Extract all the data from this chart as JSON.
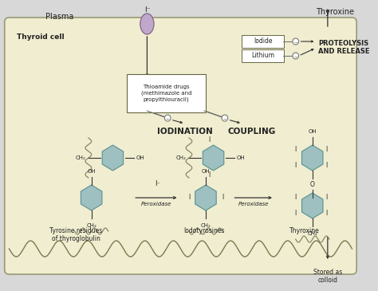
{
  "bg_color": "#f0edd0",
  "outer_bg": "#d8d8d8",
  "cell_fill": "#f0edd0",
  "cell_border": "#999977",
  "benzene_fill": "#9ec0c0",
  "benzene_border": "#5a9090",
  "title_plasma": "Plasma",
  "title_thyroid": "Thyroid cell",
  "title_thyroxine_top": "Thyroxine",
  "label_iodination": "IODINATION",
  "label_coupling": "COUPLING",
  "label_peroxidase1": "Peroxidase",
  "label_peroxidase2": "Peroxidase",
  "label_iodide": "Iodide",
  "label_lithium": "Lithium",
  "label_proteolysis": "PROTEOLYSIS\nAND RELEASE",
  "label_thioamide": "Thioamide drugs\n(methimazole and\npropylthiouracil)",
  "label_tyrosine": "Tyrosine residues\nof thyroglobulin",
  "label_iodotyrosines": "Iodotyrosines",
  "label_thyroxine_bot": "Thyroxine",
  "label_stored": "Stored as\ncolloid",
  "label_iodide_ion_top": "I⁻",
  "line_color": "#333333",
  "arrow_color": "#333333",
  "inhibit_circle_color": "#777777",
  "wave_color": "#888866"
}
